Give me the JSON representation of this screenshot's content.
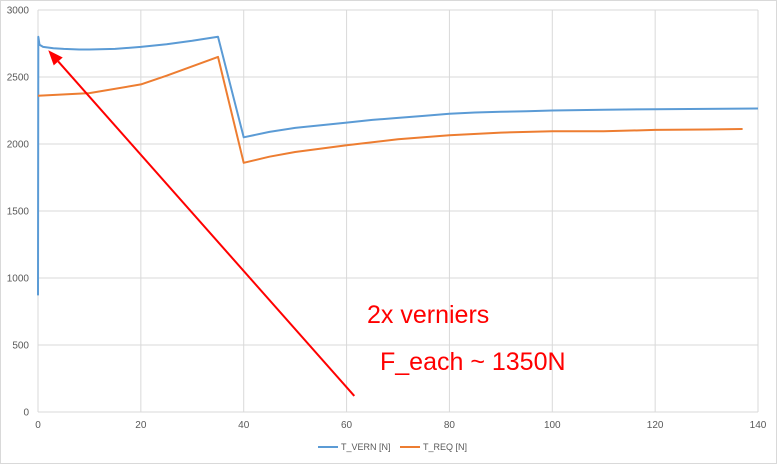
{
  "chart_data": {
    "type": "line",
    "title": "",
    "xlabel": "",
    "ylabel": "",
    "xlim": [
      0,
      140
    ],
    "ylim": [
      0,
      3000
    ],
    "x_ticks": [
      "0",
      "20",
      "40",
      "60",
      "80",
      "100",
      "120",
      "140"
    ],
    "y_ticks": [
      "0",
      "500",
      "1000",
      "1500",
      "2000",
      "2500",
      "3000"
    ],
    "grid": true,
    "legend_position": "bottom",
    "series": [
      {
        "name": "T_VERN [N]",
        "color": "#5b9bd5",
        "points": [
          [
            0,
            870
          ],
          [
            0.05,
            2800
          ],
          [
            0.3,
            2740
          ],
          [
            1,
            2725
          ],
          [
            3,
            2715
          ],
          [
            5,
            2710
          ],
          [
            8,
            2705
          ],
          [
            10,
            2705
          ],
          [
            15,
            2710
          ],
          [
            20,
            2725
          ],
          [
            25,
            2745
          ],
          [
            30,
            2770
          ],
          [
            35,
            2800
          ],
          [
            40,
            2050
          ],
          [
            45,
            2090
          ],
          [
            50,
            2120
          ],
          [
            55,
            2140
          ],
          [
            60,
            2160
          ],
          [
            65,
            2180
          ],
          [
            70,
            2195
          ],
          [
            75,
            2210
          ],
          [
            80,
            2225
          ],
          [
            85,
            2235
          ],
          [
            90,
            2240
          ],
          [
            95,
            2245
          ],
          [
            100,
            2250
          ],
          [
            110,
            2255
          ],
          [
            120,
            2260
          ],
          [
            130,
            2262
          ],
          [
            140,
            2265
          ]
        ]
      },
      {
        "name": "T_REQ [N]",
        "color": "#ed7d31",
        "points": [
          [
            0,
            2360
          ],
          [
            10,
            2380
          ],
          [
            20,
            2445
          ],
          [
            25,
            2510
          ],
          [
            30,
            2580
          ],
          [
            35,
            2650
          ],
          [
            40,
            1860
          ],
          [
            45,
            1905
          ],
          [
            50,
            1940
          ],
          [
            60,
            1990
          ],
          [
            70,
            2035
          ],
          [
            80,
            2065
          ],
          [
            90,
            2085
          ],
          [
            100,
            2095
          ],
          [
            110,
            2095
          ],
          [
            120,
            2105
          ],
          [
            130,
            2108
          ],
          [
            137,
            2112
          ]
        ]
      }
    ],
    "annotations": {
      "line1": "2x verniers",
      "line2": "F_each ~ 1350N",
      "color": "#ff0000",
      "arrow_from": [
        61.5,
        120
      ],
      "arrow_to": [
        2,
        2700
      ]
    }
  }
}
